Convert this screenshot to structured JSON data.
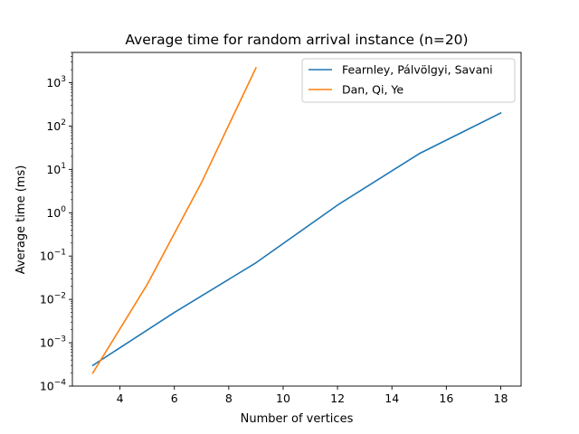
{
  "chart_data": {
    "type": "line",
    "title": "Average time for random arrival instance (n=20)",
    "xlabel": "Number of vertices",
    "ylabel": "Average time (ms)",
    "xlim": [
      2.25,
      18.75
    ],
    "ylim": [
      0.0001,
      5000
    ],
    "yscale": "log",
    "xticks": [
      4,
      6,
      8,
      10,
      12,
      14,
      16,
      18
    ],
    "xtick_labels": [
      "4",
      "6",
      "8",
      "10",
      "12",
      "14",
      "16",
      "18"
    ],
    "yticks": [
      0.0001,
      0.001,
      0.01,
      0.1,
      1,
      10,
      100,
      1000
    ],
    "ytick_labels": [
      {
        "base": "10",
        "exp": "−4"
      },
      {
        "base": "10",
        "exp": "−3"
      },
      {
        "base": "10",
        "exp": "−2"
      },
      {
        "base": "10",
        "exp": "−1"
      },
      {
        "base": "10",
        "exp": "0"
      },
      {
        "base": "10",
        "exp": "1"
      },
      {
        "base": "10",
        "exp": "2"
      },
      {
        "base": "10",
        "exp": "3"
      }
    ],
    "grid": false,
    "legend_position": "upper right",
    "series": [
      {
        "name": "Fearnley, Pálvölgyi, Savani",
        "color": "#1f77b4",
        "x": [
          3,
          6,
          9,
          12,
          15,
          18
        ],
        "y": [
          0.0003,
          0.005,
          0.07,
          1.5,
          23,
          200
        ]
      },
      {
        "name": "Dan, Qi, Ye",
        "color": "#ff7f0e",
        "x": [
          3,
          5,
          7,
          9
        ],
        "y": [
          0.0002,
          0.022,
          5,
          2200
        ]
      }
    ]
  }
}
